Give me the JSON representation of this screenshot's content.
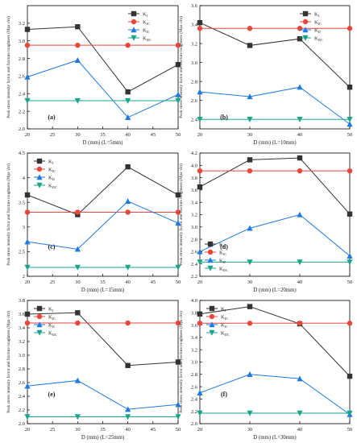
{
  "figure": {
    "ylabel": "Peak stress intensity factor and fracture toughness (Mpa·√m)"
  },
  "legend_labels": [
    "K",
    "K",
    "K",
    "K"
  ],
  "legend_subs": [
    "I",
    "IC",
    "II",
    "IIC"
  ],
  "colors": {
    "KI": "#333333",
    "KIC": "#e8473c",
    "KII": "#1f7ae0",
    "KIIC": "#1aa58a"
  },
  "markers": {
    "KI": "square",
    "KIC": "circle",
    "KII": "triangle-up",
    "KIIC": "triangle-down"
  },
  "chart_data": [
    {
      "type": "line",
      "panel_label": "(a)",
      "xlabel": "D (mm) (L=5mm)",
      "x": [
        20,
        30,
        40,
        50
      ],
      "xlim": [
        20,
        50
      ],
      "xticks": [
        20,
        25,
        30,
        35,
        40,
        45,
        50
      ],
      "ylim": [
        2.0,
        3.4
      ],
      "yticks": [
        2.0,
        2.2,
        2.4,
        2.6,
        2.8,
        3.0,
        3.2
      ],
      "legend_position": "top-right",
      "series": [
        {
          "name": "KI",
          "values": [
            3.13,
            3.16,
            2.42,
            2.73
          ]
        },
        {
          "name": "KIC",
          "values": [
            2.95,
            2.95,
            2.95,
            2.95
          ]
        },
        {
          "name": "KII",
          "values": [
            2.59,
            2.78,
            2.13,
            2.39
          ]
        },
        {
          "name": "KIIC",
          "values": [
            2.32,
            2.32,
            2.32,
            2.32
          ]
        }
      ]
    },
    {
      "type": "line",
      "panel_label": "(b)",
      "xlabel": "D (mm) (L=10mm)",
      "x": [
        20,
        30,
        40,
        50
      ],
      "xlim": [
        20,
        50
      ],
      "xticks": [
        20,
        30,
        40,
        50
      ],
      "ylim": [
        2.3,
        3.6
      ],
      "yticks": [
        2.4,
        2.6,
        2.8,
        3.0,
        3.2,
        3.4,
        3.6
      ],
      "legend_position": "top-right",
      "series": [
        {
          "name": "KI",
          "values": [
            3.42,
            3.18,
            3.25,
            2.74
          ]
        },
        {
          "name": "KIC",
          "values": [
            3.36,
            3.36,
            3.36,
            3.36
          ]
        },
        {
          "name": "KII",
          "values": [
            2.69,
            2.64,
            2.74,
            2.35
          ]
        },
        {
          "name": "KIIC",
          "values": [
            2.4,
            2.4,
            2.4,
            2.4
          ]
        }
      ]
    },
    {
      "type": "line",
      "panel_label": "(c)",
      "xlabel": "D (mm) (L=15mm)",
      "x": [
        20,
        30,
        40,
        50
      ],
      "xlim": [
        20,
        50
      ],
      "xticks": [
        20,
        25,
        30,
        35,
        40,
        45,
        50
      ],
      "ylim": [
        2.0,
        4.5
      ],
      "yticks": [
        2.0,
        2.5,
        3.0,
        3.5,
        4.0,
        4.5
      ],
      "legend_position": "top-left",
      "series": [
        {
          "name": "KI",
          "values": [
            3.65,
            3.25,
            4.22,
            3.65
          ]
        },
        {
          "name": "KIC",
          "values": [
            3.3,
            3.3,
            3.3,
            3.3
          ]
        },
        {
          "name": "KII",
          "values": [
            2.7,
            2.55,
            3.52,
            3.08
          ]
        },
        {
          "name": "KIIC",
          "values": [
            2.18,
            2.18,
            2.18,
            2.18
          ]
        }
      ]
    },
    {
      "type": "line",
      "panel_label": "(d)",
      "xlabel": "D (mm) (L=20mm)",
      "x": [
        20,
        30,
        40,
        50
      ],
      "xlim": [
        20,
        50
      ],
      "xticks": [
        20,
        30,
        40,
        50
      ],
      "ylim": [
        2.2,
        4.2
      ],
      "yticks": [
        2.2,
        2.4,
        2.6,
        2.8,
        3.0,
        3.2,
        3.4,
        3.6,
        3.8,
        4.0,
        4.2
      ],
      "legend_position": "bottom-left",
      "series": [
        {
          "name": "KI",
          "values": [
            3.65,
            4.09,
            4.12,
            3.21
          ]
        },
        {
          "name": "KIC",
          "values": [
            3.91,
            3.91,
            3.91,
            3.91
          ]
        },
        {
          "name": "KII",
          "values": [
            2.6,
            2.98,
            3.2,
            2.53
          ]
        },
        {
          "name": "KIIC",
          "values": [
            2.43,
            2.43,
            2.43,
            2.43
          ]
        }
      ]
    },
    {
      "type": "line",
      "panel_label": "(e)",
      "xlabel": "D (mm) (L=25mm)",
      "x": [
        20,
        30,
        40,
        50
      ],
      "xlim": [
        20,
        50
      ],
      "xticks": [
        20,
        25,
        30,
        35,
        40,
        45,
        50
      ],
      "ylim": [
        2.0,
        3.8
      ],
      "yticks": [
        2.0,
        2.2,
        2.4,
        2.6,
        2.8,
        3.0,
        3.2,
        3.4,
        3.6,
        3.8
      ],
      "legend_position": "top-left",
      "series": [
        {
          "name": "KI",
          "values": [
            3.6,
            3.62,
            2.85,
            2.9
          ]
        },
        {
          "name": "KIC",
          "values": [
            3.47,
            3.47,
            3.47,
            3.47
          ]
        },
        {
          "name": "KII",
          "values": [
            2.55,
            2.63,
            2.21,
            2.28
          ]
        },
        {
          "name": "KIIC",
          "values": [
            2.1,
            2.1,
            2.1,
            2.1
          ]
        }
      ]
    },
    {
      "type": "line",
      "panel_label": "(f)",
      "xlabel": "D (mm) (L=30mm)",
      "x": [
        20,
        30,
        40,
        50
      ],
      "xlim": [
        20,
        50
      ],
      "xticks": [
        20,
        30,
        40,
        50
      ],
      "ylim": [
        2.0,
        4.0
      ],
      "yticks": [
        2.0,
        2.2,
        2.4,
        2.6,
        2.8,
        3.0,
        3.2,
        3.4,
        3.6,
        3.8,
        4.0
      ],
      "legend_position": "top-left",
      "series": [
        {
          "name": "KI",
          "values": [
            3.78,
            3.9,
            3.62,
            2.77
          ]
        },
        {
          "name": "KIC",
          "values": [
            3.63,
            3.63,
            3.63,
            3.63
          ]
        },
        {
          "name": "KII",
          "values": [
            2.5,
            2.8,
            2.73,
            2.15
          ]
        },
        {
          "name": "KIIC",
          "values": [
            2.17,
            2.17,
            2.17,
            2.17
          ]
        }
      ]
    }
  ]
}
